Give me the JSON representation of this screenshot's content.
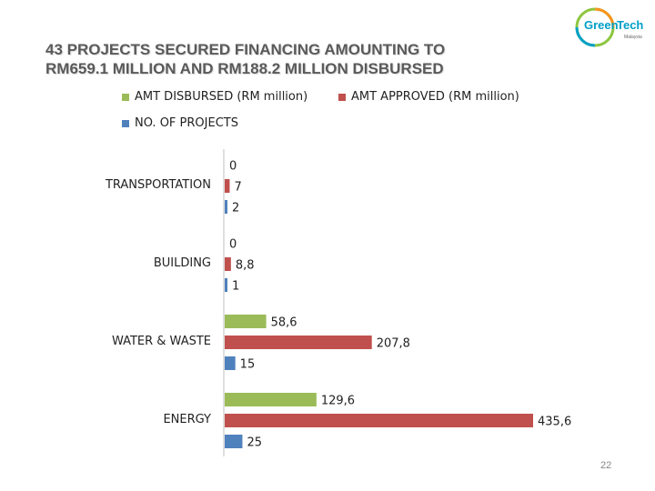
{
  "slide": {
    "title_line1": "43 PROJECTS SECURED FINANCING AMOUNTING TO",
    "title_line2": "RM659.1 MILLION AND RM188.2 MILLION DISBURSED",
    "page_number": "22",
    "logo": {
      "text_green": "Green",
      "text_tech": "Tech",
      "text_sub": "Malaysia"
    }
  },
  "colors": {
    "green": "#9bbb59",
    "red": "#c0504d",
    "blue": "#4f81bd",
    "title": "#5a5a5a"
  },
  "chart_data": {
    "type": "bar",
    "orientation": "horizontal",
    "title": "",
    "categories": [
      "TRANSPORTATION",
      "BUILDING",
      "WATER & WASTE",
      "ENERGY"
    ],
    "series": [
      {
        "name": "AMT DISBURSED (RM million)",
        "color": "#9bbb59",
        "values": [
          0,
          0,
          58.6,
          129.6
        ],
        "labels": [
          "0",
          "0",
          "58,6",
          "129,6"
        ]
      },
      {
        "name": "AMT APPROVED (RM million)",
        "color": "#c0504d",
        "values": [
          7,
          8.8,
          207.8,
          435.6
        ],
        "labels": [
          "7",
          "8,8",
          "207,8",
          "435,6"
        ]
      },
      {
        "name": "NO. OF PROJECTS",
        "color": "#4f81bd",
        "values": [
          2,
          1,
          15,
          25
        ],
        "labels": [
          "2",
          "1",
          "15",
          "25"
        ]
      }
    ],
    "xlim": [
      0,
      460
    ],
    "grid": false,
    "legend_position": "top"
  }
}
